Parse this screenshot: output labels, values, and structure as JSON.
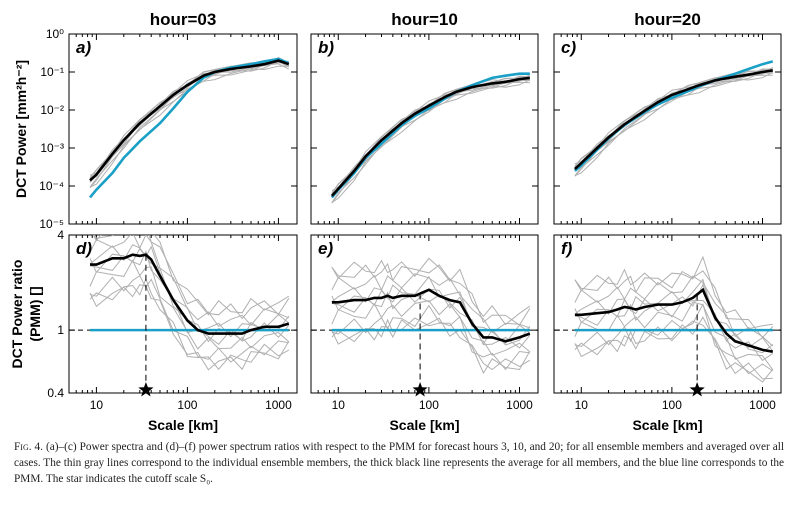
{
  "chart_data": {
    "type": "line",
    "panel_titles": [
      "hour=03",
      "hour=10",
      "hour=20"
    ],
    "panel_letters": [
      "a)",
      "b)",
      "c)",
      "d)",
      "e)",
      "f)"
    ],
    "xlabel": "Scale [km]",
    "xscale": "log",
    "xlim": [
      5,
      1600
    ],
    "xticks": [
      "10",
      "100",
      "1000"
    ],
    "top_row": {
      "ylabel": "DCT Power [mm²h⁻²]",
      "yscale": "log",
      "ylim": [
        1e-05,
        1
      ],
      "yticks": [
        "10⁰",
        "10⁻¹",
        "10⁻²",
        "10⁻³",
        "10⁻⁴",
        "10⁻⁵"
      ]
    },
    "bottom_row": {
      "ylabel": "DCT Power ratio (PMM) []",
      "yscale": "log",
      "ylim": [
        0.4,
        4
      ],
      "yticks": [
        "4",
        "1",
        "0.4"
      ]
    },
    "spectra_x_km": [
      8.5,
      10,
      15,
      20,
      30,
      50,
      70,
      100,
      150,
      200,
      300,
      500,
      700,
      1000,
      1300
    ],
    "spectra": [
      {
        "panel": "a",
        "mean": [
          0.00014,
          0.0002,
          0.0007,
          0.0016,
          0.0045,
          0.0125,
          0.025,
          0.045,
          0.08,
          0.1,
          0.12,
          0.14,
          0.16,
          0.2,
          0.16
        ],
        "pmm": [
          5e-05,
          8e-05,
          0.00022,
          0.00055,
          0.0015,
          0.0045,
          0.011,
          0.03,
          0.07,
          0.1,
          0.13,
          0.16,
          0.19,
          0.22,
          0.17
        ]
      },
      {
        "panel": "b",
        "mean": [
          5.5e-05,
          8.5e-05,
          0.00025,
          0.0006,
          0.0016,
          0.0045,
          0.008,
          0.013,
          0.022,
          0.03,
          0.04,
          0.05,
          0.055,
          0.065,
          0.07
        ],
        "pmm": [
          5e-05,
          8e-05,
          0.00022,
          0.00055,
          0.0013,
          0.004,
          0.007,
          0.011,
          0.02,
          0.03,
          0.045,
          0.07,
          0.08,
          0.09,
          0.09
        ]
      },
      {
        "panel": "c",
        "mean": [
          0.00028,
          0.0004,
          0.001,
          0.0019,
          0.0042,
          0.0095,
          0.016,
          0.025,
          0.035,
          0.045,
          0.06,
          0.075,
          0.085,
          0.1,
          0.11
        ],
        "pmm": [
          0.00025,
          0.00035,
          0.0009,
          0.0018,
          0.004,
          0.0088,
          0.014,
          0.021,
          0.031,
          0.042,
          0.06,
          0.09,
          0.12,
          0.16,
          0.19
        ]
      }
    ],
    "ratio_x_km": [
      8.5,
      10,
      15,
      20,
      25,
      30,
      35,
      40,
      50,
      70,
      100,
      130,
      170,
      220,
      300,
      400,
      500,
      700,
      1000,
      1300
    ],
    "ratios": [
      {
        "panel": "d",
        "mean": [
          2.6,
          2.6,
          2.85,
          2.85,
          3.0,
          2.95,
          3.0,
          2.8,
          2.2,
          1.55,
          1.15,
          1.0,
          0.95,
          0.95,
          0.95,
          0.95,
          1.0,
          1.05,
          1.05,
          1.1
        ],
        "cutoff_km": 35
      },
      {
        "panel": "e",
        "mean": [
          1.5,
          1.5,
          1.55,
          1.55,
          1.6,
          1.6,
          1.65,
          1.6,
          1.65,
          1.65,
          1.8,
          1.65,
          1.55,
          1.5,
          1.1,
          0.9,
          0.9,
          0.85,
          0.9,
          0.95
        ],
        "cutoff_km": 80
      },
      {
        "panel": "f",
        "mean": [
          1.25,
          1.25,
          1.28,
          1.3,
          1.35,
          1.4,
          1.38,
          1.35,
          1.4,
          1.45,
          1.45,
          1.5,
          1.6,
          1.8,
          1.2,
          0.95,
          0.85,
          0.8,
          0.75,
          0.73
        ],
        "cutoff_km": 190
      }
    ],
    "pmm_ratio": 1.0,
    "colors": {
      "mean": "#000000",
      "pmm": "#1a9fc6",
      "members": "#b0b0b0",
      "cutoff": "#000000"
    }
  },
  "caption": {
    "fig_label": "Fig. 4.",
    "text": " (a)–(c) Power spectra and (d)–(f) power spectrum ratios with respect to the PMM for forecast hours 3, 10, and 20; for all ensemble members and averaged over all cases. The thin gray lines correspond to the individual ensemble members, the thick black line represents the average for all members, and the blue line corresponds to the PMM. The star indicates the cutoff scale S₀."
  }
}
